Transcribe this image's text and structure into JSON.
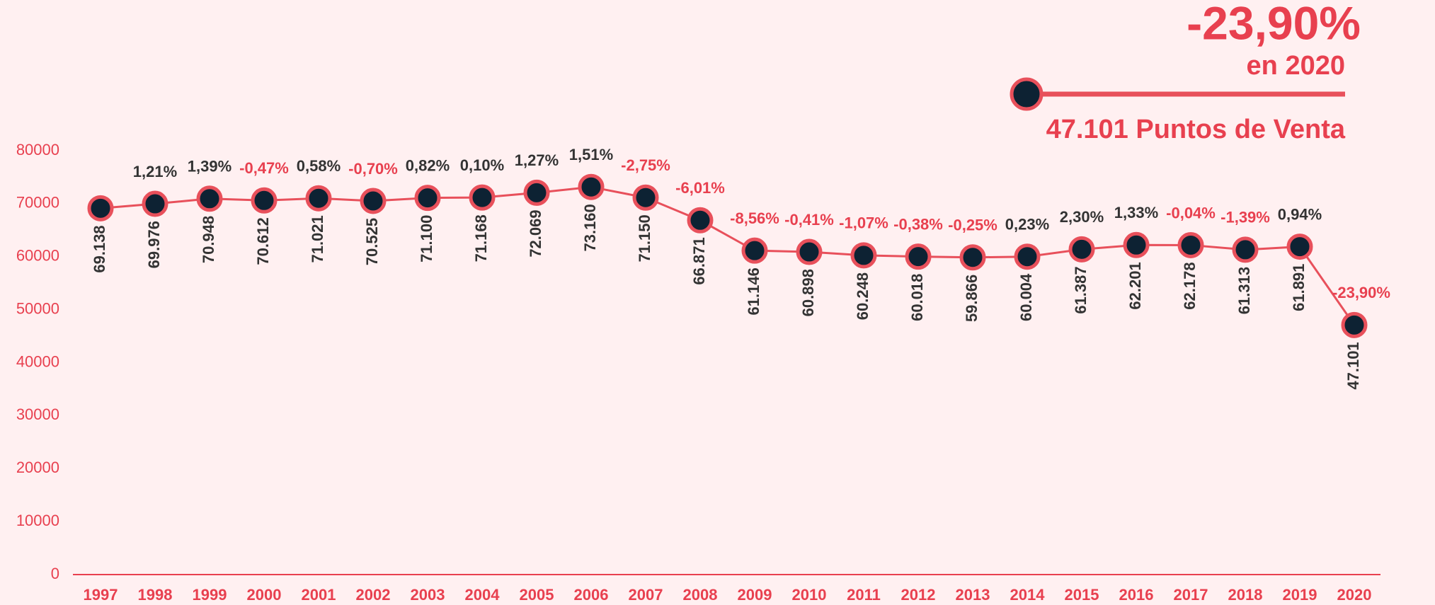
{
  "chart_data": {
    "type": "line",
    "callout": {
      "headline": "-23,90%",
      "sub": "en 2020",
      "caption": "47.101 Puntos de Venta"
    },
    "categories": [
      "1997",
      "1998",
      "1999",
      "2000",
      "2001",
      "2002",
      "2003",
      "2004",
      "2005",
      "2006",
      "2007",
      "2008",
      "2009",
      "2010",
      "2011",
      "2012",
      "2013",
      "2014",
      "2015",
      "2016",
      "2017",
      "2018",
      "2019",
      "2020"
    ],
    "values": [
      69138,
      69976,
      70948,
      70612,
      71021,
      70525,
      71100,
      71168,
      72069,
      73160,
      71150,
      66871,
      61146,
      60898,
      60248,
      60018,
      59866,
      60004,
      61387,
      62201,
      62178,
      61313,
      61891,
      47101
    ],
    "value_labels": [
      "69.138",
      "69.976",
      "70.948",
      "70.612",
      "71.021",
      "70.525",
      "71.100",
      "71.168",
      "72.069",
      "73.160",
      "71.150",
      "66.871",
      "61.146",
      "60.898",
      "60.248",
      "60.018",
      "59.866",
      "60.004",
      "61.387",
      "62.201",
      "62.178",
      "61.313",
      "61.891",
      "47.101"
    ],
    "changes": [
      null,
      1.21,
      1.39,
      -0.47,
      0.58,
      -0.7,
      0.82,
      0.1,
      1.27,
      1.51,
      -2.75,
      -6.01,
      -8.56,
      -0.41,
      -1.07,
      -0.38,
      -0.25,
      0.23,
      2.3,
      1.33,
      -0.04,
      -1.39,
      0.94,
      -23.9
    ],
    "change_labels": [
      null,
      "1,21%",
      "1,39%",
      "-0,47%",
      "0,58%",
      "-0,70%",
      "0,82%",
      "0,10%",
      "1,27%",
      "1,51%",
      "-2,75%",
      "-6,01%",
      "-8,56%",
      "-0,41%",
      "-1,07%",
      "-0,38%",
      "-0,25%",
      "0,23%",
      "2,30%",
      "1,33%",
      "-0,04%",
      "-1,39%",
      "0,94%",
      "-23,90%"
    ],
    "ylim": [
      0,
      80000
    ],
    "yticks": [
      0,
      10000,
      20000,
      30000,
      40000,
      50000,
      60000,
      70000,
      80000
    ],
    "line_color": "#e8505b",
    "marker_color": "#0d2233",
    "positive_color": "#333333",
    "negative_color": "#e8404f"
  }
}
